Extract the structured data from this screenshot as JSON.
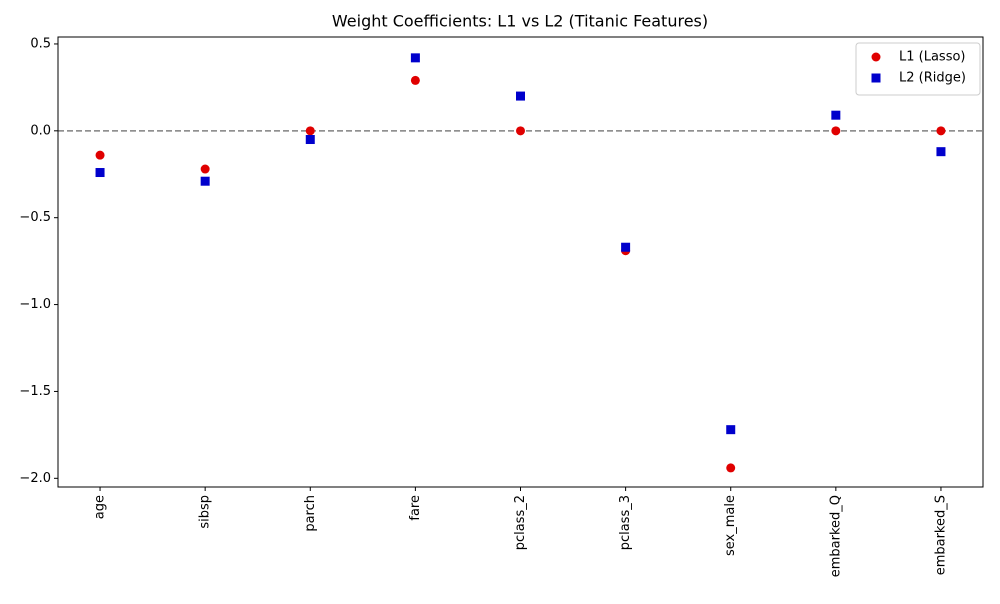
{
  "chart_data": {
    "type": "scatter",
    "title": "Weight Coefficients: L1 vs L2 (Titanic Features)",
    "categories": [
      "age",
      "sibsp",
      "parch",
      "fare",
      "pclass_2",
      "pclass_3",
      "sex_male",
      "embarked_Q",
      "embarked_S"
    ],
    "series": [
      {
        "name": "L1 (Lasso)",
        "color": "#e00000",
        "marker": "circle",
        "values": [
          -0.14,
          -0.22,
          0,
          0.29,
          0,
          -0.69,
          -1.94,
          0,
          0
        ]
      },
      {
        "name": "L2 (Ridge)",
        "color": "#0000cc",
        "marker": "square",
        "values": [
          -0.24,
          -0.29,
          -0.05,
          0.42,
          0.2,
          -0.67,
          -1.72,
          0.09,
          -0.12
        ]
      }
    ],
    "ylim": [
      -2.05,
      0.54
    ],
    "yticks": [
      {
        "value": -2,
        "label": "−2.0"
      },
      {
        "value": -1.5,
        "label": "−1.5"
      },
      {
        "value": -1,
        "label": "−1.0"
      },
      {
        "value": -0.5,
        "label": "−0.5"
      },
      {
        "value": 0,
        "label": "0.0"
      },
      0.5
    ],
    "reference_line": {
      "value": 0,
      "color": "#808080",
      "style": "dashed"
    },
    "legend": "upper right",
    "grid": false
  }
}
